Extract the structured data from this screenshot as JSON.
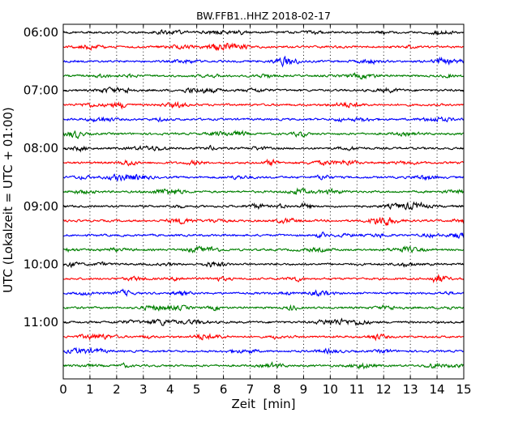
{
  "chart_data": {
    "type": "line",
    "title": "BW.FFB1..HHZ 2018-02-17",
    "xlabel": "Zeit  [min]",
    "ylabel": "UTC (Lokalzeit = UTC + 01:00)",
    "xlim": [
      0,
      15
    ],
    "x_ticks": [
      "0",
      "1",
      "2",
      "3",
      "4",
      "5",
      "6",
      "7",
      "8",
      "9",
      "10",
      "11",
      "12",
      "13",
      "14",
      "15"
    ],
    "y_ticks": [
      "06:00",
      "07:00",
      "08:00",
      "09:00",
      "10:00",
      "11:00"
    ],
    "grid_x": "dotted vertical lines at each minute",
    "series_colors": [
      "#000000",
      "#ff0000",
      "#0000ff",
      "#008000"
    ],
    "traces": [
      {
        "start": "06:00"
      },
      {
        "start": "06:15"
      },
      {
        "start": "06:30"
      },
      {
        "start": "06:45"
      },
      {
        "start": "07:00"
      },
      {
        "start": "07:15"
      },
      {
        "start": "07:30"
      },
      {
        "start": "07:45"
      },
      {
        "start": "08:00"
      },
      {
        "start": "08:15"
      },
      {
        "start": "08:30"
      },
      {
        "start": "08:45"
      },
      {
        "start": "09:00"
      },
      {
        "start": "09:15"
      },
      {
        "start": "09:30"
      },
      {
        "start": "09:45"
      },
      {
        "start": "10:00"
      },
      {
        "start": "10:15"
      },
      {
        "start": "10:30"
      },
      {
        "start": "10:45"
      },
      {
        "start": "11:00"
      },
      {
        "start": "11:15"
      },
      {
        "start": "11:30"
      },
      {
        "start": "11:45"
      }
    ]
  }
}
